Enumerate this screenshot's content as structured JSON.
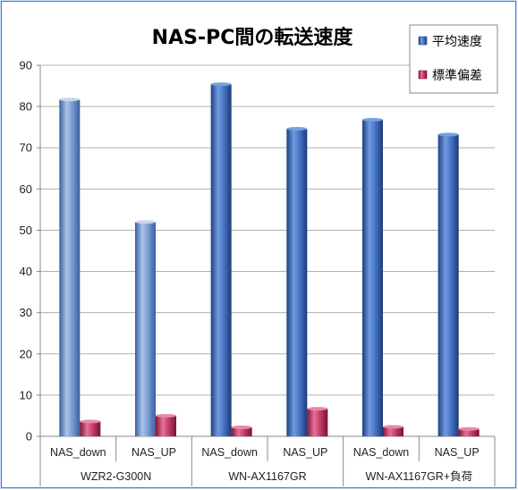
{
  "chart_data": {
    "type": "bar",
    "title": "NAS-PC間の転送速度",
    "ylim": [
      0,
      90
    ],
    "yticks": [
      0,
      10,
      20,
      30,
      40,
      50,
      60,
      70,
      80,
      90
    ],
    "grid": true,
    "legend_position": "top-right",
    "categories": [
      "NAS_down",
      "NAS_UP",
      "NAS_down",
      "NAS_UP",
      "NAS_down",
      "NAS_UP"
    ],
    "groups": [
      {
        "label": "WZR2-G300N",
        "span": [
          0,
          1
        ]
      },
      {
        "label": "WN-AX1167GR",
        "span": [
          2,
          3
        ]
      },
      {
        "label": "WN-AX1167GR+負荷",
        "span": [
          4,
          5
        ]
      }
    ],
    "series": [
      {
        "name": "平均速度",
        "color": "#3f6fc0",
        "values": [
          81.7,
          52.0,
          85.4,
          74.6,
          76.8,
          73.2
        ]
      },
      {
        "name": "標準偏差",
        "color": "#c0355e",
        "values": [
          3.6,
          5.0,
          2.2,
          6.7,
          2.3,
          1.8
        ]
      }
    ]
  }
}
